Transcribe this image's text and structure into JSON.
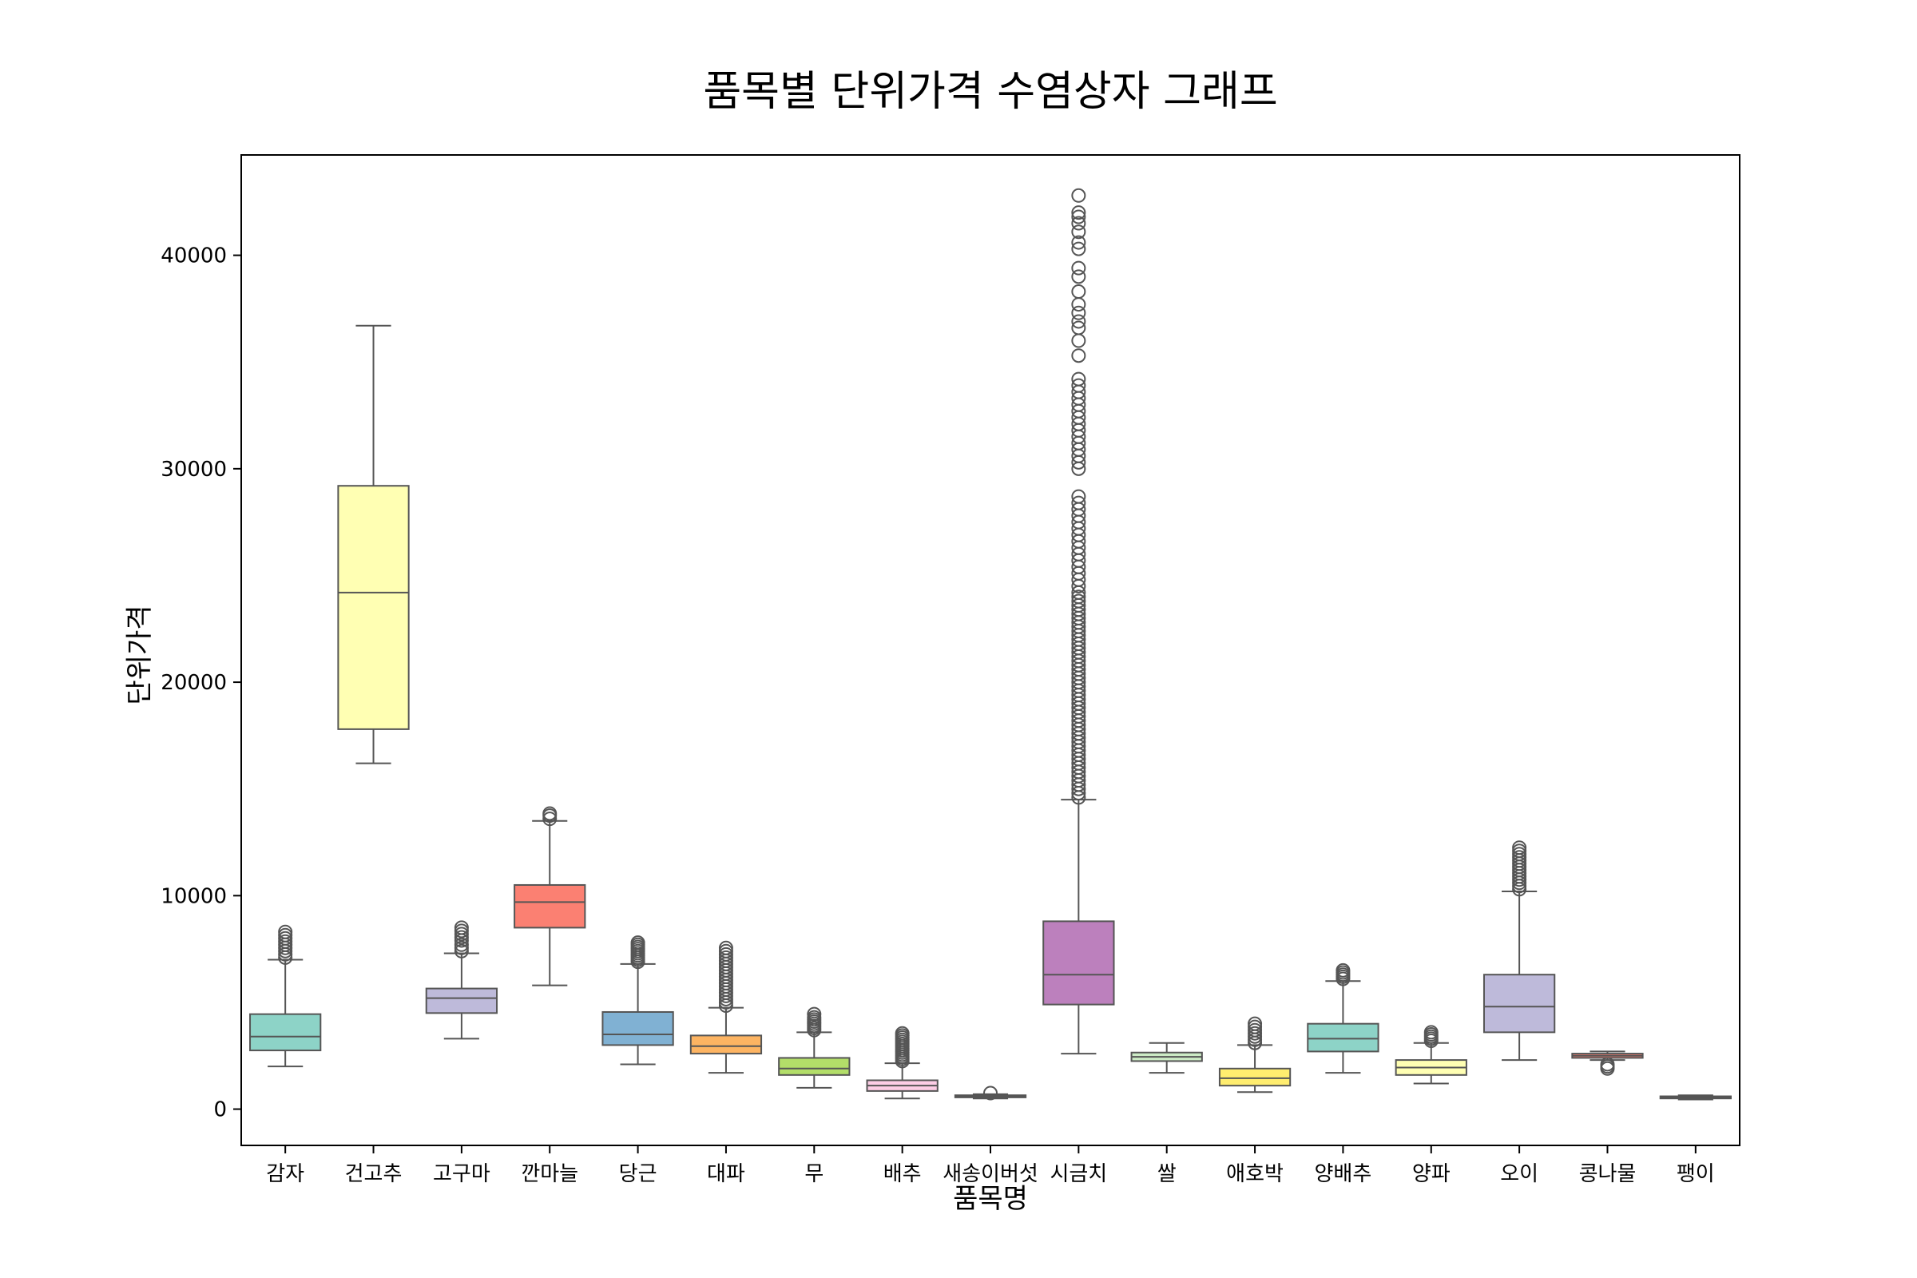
{
  "chart_data": {
    "type": "box",
    "title": "품목별 단위가격 수염상자 그래프",
    "xlabel": "품목명",
    "ylabel": "단위가격",
    "ylim": [
      -1700,
      44700
    ],
    "yticks": [
      0,
      10000,
      20000,
      30000,
      40000
    ],
    "grid": false,
    "legend": "none",
    "categories": [
      "감자",
      "건고추",
      "고구마",
      "깐마늘",
      "당근",
      "대파",
      "무",
      "배추",
      "새송이버섯",
      "시금치",
      "쌀",
      "애호박",
      "양배추",
      "양파",
      "오이",
      "콩나물",
      "팽이"
    ],
    "boxes": [
      {
        "category": "감자",
        "whisker_low": 2000,
        "q1": 2750,
        "median": 3400,
        "q3": 4450,
        "whisker_high": 7000,
        "color": "#8dd3c7",
        "outliers": [
          7100,
          7250,
          7400,
          7550,
          7700,
          7850,
          8000,
          8150,
          8300
        ]
      },
      {
        "category": "건고추",
        "whisker_low": 16200,
        "q1": 17800,
        "median": 24200,
        "q3": 29200,
        "whisker_high": 36700,
        "color": "#ffffb3",
        "outliers": []
      },
      {
        "category": "고구마",
        "whisker_low": 3300,
        "q1": 4500,
        "median": 5200,
        "q3": 5650,
        "whisker_high": 7300,
        "color": "#bebada",
        "outliers": [
          7400,
          7550,
          7700,
          7900,
          8050,
          8200,
          8350,
          8500
        ]
      },
      {
        "category": "깐마늘",
        "whisker_low": 5800,
        "q1": 8500,
        "median": 9700,
        "q3": 10500,
        "whisker_high": 13500,
        "color": "#fb8072",
        "outliers": [
          13600,
          13750,
          13850
        ]
      },
      {
        "category": "당근",
        "whisker_low": 2100,
        "q1": 3000,
        "median": 3500,
        "q3": 4550,
        "whisker_high": 6800,
        "color": "#80b1d3",
        "outliers": [
          6900,
          7000,
          7100,
          7200,
          7300,
          7400,
          7500,
          7600,
          7700,
          7800
        ]
      },
      {
        "category": "대파",
        "whisker_low": 1700,
        "q1": 2600,
        "median": 2950,
        "q3": 3450,
        "whisker_high": 4750,
        "color": "#fdb462",
        "outliers": [
          4850,
          5000,
          5150,
          5300,
          5450,
          5600,
          5750,
          5900,
          6050,
          6200,
          6350,
          6500,
          6650,
          6800,
          6950,
          7100,
          7250,
          7400,
          7550
        ]
      },
      {
        "category": "무",
        "whisker_low": 1000,
        "q1": 1600,
        "median": 1900,
        "q3": 2400,
        "whisker_high": 3600,
        "color": "#b3de69",
        "outliers": [
          3700,
          3800,
          3900,
          4000,
          4100,
          4200,
          4300,
          4450
        ]
      },
      {
        "category": "배추",
        "whisker_low": 500,
        "q1": 850,
        "median": 1100,
        "q3": 1350,
        "whisker_high": 2150,
        "color": "#fccde5",
        "outliers": [
          2250,
          2350,
          2450,
          2550,
          2650,
          2750,
          2850,
          2950,
          3050,
          3150,
          3250,
          3350,
          3450,
          3550
        ]
      },
      {
        "category": "새송이버섯",
        "whisker_low": 500,
        "q1": 550,
        "median": 600,
        "q3": 650,
        "whisker_high": 700,
        "color": "#d9d9d9",
        "outliers": [
          750
        ]
      },
      {
        "category": "시금치",
        "whisker_low": 2600,
        "q1": 4900,
        "median": 6300,
        "q3": 8800,
        "whisker_high": 14500,
        "color": "#bc80bd",
        "outliers": [
          14600,
          14800,
          15000,
          15200,
          15400,
          15600,
          15800,
          16000,
          16200,
          16400,
          16600,
          16800,
          17000,
          17200,
          17400,
          17600,
          17800,
          18000,
          18200,
          18400,
          18600,
          18800,
          19000,
          19200,
          19400,
          19600,
          19800,
          20000,
          20200,
          20400,
          20600,
          20800,
          21000,
          21200,
          21400,
          21600,
          21800,
          22000,
          22200,
          22400,
          22600,
          22800,
          23000,
          23200,
          23400,
          23600,
          23800,
          24000,
          24200,
          24500,
          24800,
          25100,
          25400,
          25700,
          26000,
          26300,
          26600,
          26900,
          27200,
          27500,
          27800,
          28100,
          28400,
          28700,
          30000,
          30300,
          30600,
          30900,
          31200,
          31500,
          31800,
          32100,
          32400,
          32700,
          33000,
          33300,
          33600,
          33900,
          34200,
          35300,
          36000,
          36600,
          36900,
          37300,
          37700,
          38300,
          39000,
          39400,
          40300,
          40600,
          41100,
          41500,
          41800,
          42000,
          42800
        ]
      },
      {
        "category": "쌀",
        "whisker_low": 1700,
        "q1": 2250,
        "median": 2450,
        "q3": 2650,
        "whisker_high": 3100,
        "color": "#ccebc5",
        "outliers": []
      },
      {
        "category": "애호박",
        "whisker_low": 800,
        "q1": 1100,
        "median": 1450,
        "q3": 1900,
        "whisker_high": 3000,
        "color": "#ffed6f",
        "outliers": [
          3100,
          3250,
          3400,
          3550,
          3700,
          3850,
          4000
        ]
      },
      {
        "category": "양배추",
        "whisker_low": 1700,
        "q1": 2700,
        "median": 3300,
        "q3": 4000,
        "whisker_high": 6000,
        "color": "#8dd3c7",
        "outliers": [
          6100,
          6200,
          6300,
          6400,
          6500
        ]
      },
      {
        "category": "양파",
        "whisker_low": 1200,
        "q1": 1600,
        "median": 1950,
        "q3": 2300,
        "whisker_high": 3100,
        "color": "#ffffb3",
        "outliers": [
          3200,
          3300,
          3400,
          3500,
          3600
        ]
      },
      {
        "category": "오이",
        "whisker_low": 2300,
        "q1": 3600,
        "median": 4800,
        "q3": 6300,
        "whisker_high": 10200,
        "color": "#bebada",
        "outliers": [
          10300,
          10450,
          10600,
          10750,
          10900,
          11050,
          11200,
          11350,
          11500,
          11650,
          11800,
          11950,
          12100,
          12250
        ]
      },
      {
        "category": "콩나물",
        "whisker_low": 2300,
        "q1": 2400,
        "median": 2500,
        "q3": 2600,
        "whisker_high": 2700,
        "color": "#fb8072",
        "outliers": [
          1900,
          2000,
          2100
        ]
      },
      {
        "category": "팽이",
        "whisker_low": 450,
        "q1": 500,
        "median": 550,
        "q3": 600,
        "whisker_high": 650,
        "color": "#80b1d3",
        "outliers": []
      }
    ]
  }
}
